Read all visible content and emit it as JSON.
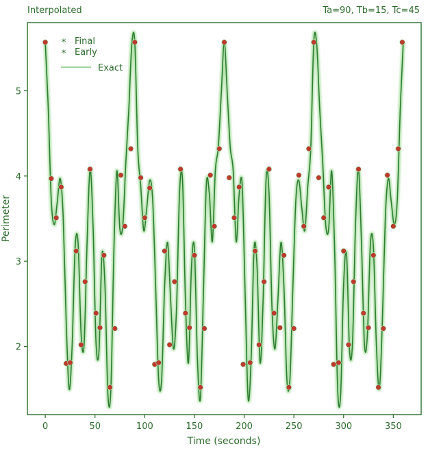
{
  "chart_data": {
    "type": "line",
    "title_left": "Interpolated",
    "title_right": "Ta=90, Tb=15, Tc=45",
    "xlabel": "Time (seconds)",
    "ylabel": "Perimeter",
    "xlim": [
      -18,
      378
    ],
    "ylim": [
      1.2,
      5.8
    ],
    "xticks": [
      0,
      50,
      100,
      150,
      200,
      250,
      300,
      350
    ],
    "yticks": [
      2,
      3,
      4,
      5
    ],
    "grid": false,
    "legend_position": "top-left",
    "legend": [
      {
        "label": "Final",
        "marker": "*",
        "color": "#7aa874"
      },
      {
        "label": "Early",
        "marker": "*",
        "color": "#2e6b2e"
      },
      {
        "label": "Exact",
        "marker": "line",
        "color": "#9fd39a"
      }
    ],
    "colors": {
      "axis": "#2e6b2e",
      "curve": "#2e7d32",
      "glow": "#b7e4b0",
      "marker": "#c0392b"
    },
    "series": [
      {
        "name": "Exact",
        "style": "line",
        "x": [
          0,
          3,
          6,
          9,
          12,
          15,
          18,
          21,
          24,
          27,
          30,
          33,
          36,
          39,
          42,
          45,
          48,
          51,
          54,
          57,
          60,
          63,
          66,
          69,
          72,
          75,
          78,
          81,
          84,
          87,
          90,
          93,
          96,
          99,
          102,
          105,
          108,
          111,
          114,
          117,
          120,
          123,
          126,
          129,
          132,
          135,
          138,
          141,
          144,
          147,
          150,
          153,
          156,
          159,
          162,
          165,
          168,
          171,
          174,
          177,
          180,
          183,
          186,
          189,
          192,
          195,
          198,
          201,
          204,
          207,
          210,
          213,
          216,
          219,
          222,
          225,
          228,
          231,
          234,
          237,
          240,
          243,
          246,
          249,
          252,
          255,
          258,
          261,
          264,
          267,
          270,
          273,
          276,
          279,
          282,
          285,
          288,
          291,
          294,
          297,
          300,
          303,
          306,
          309,
          312,
          315,
          318,
          321,
          324,
          327,
          330,
          333,
          336,
          339,
          342,
          345,
          348,
          351,
          354,
          357,
          360
        ],
        "y": [
          5.57,
          4.79,
          3.72,
          3.43,
          3.69,
          3.97,
          3.52,
          2.3,
          1.5,
          2.01,
          3.16,
          3.21,
          2.15,
          2.02,
          3.21,
          4.08,
          3.43,
          2.05,
          1.95,
          3.08,
          2.72,
          1.43,
          1.51,
          3.13,
          4.06,
          3.38,
          3.43,
          4.16,
          4.78,
          5.54,
          5.57,
          4.33,
          3.88,
          3.36,
          3.62,
          3.95,
          3.72,
          2.7,
          1.61,
          1.61,
          2.7,
          3.22,
          2.56,
          1.97,
          2.45,
          3.8,
          3.95,
          2.52,
          1.81,
          2.93,
          3.15,
          1.85,
          1.39,
          2.61,
          3.9,
          3.79,
          3.23,
          4.06,
          4.34,
          4.97,
          5.57,
          4.97,
          4.34,
          4.06,
          3.23,
          3.79,
          3.9,
          2.61,
          1.39,
          1.85,
          3.15,
          2.93,
          1.81,
          2.52,
          3.95,
          3.8,
          2.45,
          1.97,
          2.56,
          3.22,
          2.7,
          1.61,
          1.61,
          2.7,
          3.72,
          3.95,
          3.62,
          3.36,
          3.88,
          4.33,
          5.57,
          5.54,
          4.78,
          4.16,
          3.43,
          3.38,
          4.06,
          3.13,
          1.51,
          1.43,
          2.72,
          3.08,
          1.95,
          2.05,
          3.43,
          4.08,
          3.21,
          2.02,
          2.15,
          3.21,
          3.16,
          2.01,
          1.5,
          2.3,
          3.52,
          3.97,
          3.69,
          3.43,
          3.72,
          4.79,
          5.57
        ]
      },
      {
        "name": "Final",
        "style": "marker",
        "x": [
          0,
          6,
          11,
          16,
          21,
          25,
          31,
          36,
          40,
          45,
          51,
          55,
          59,
          65,
          70,
          76,
          80,
          86,
          90,
          96,
          100,
          105,
          110,
          114,
          120,
          125,
          130,
          136,
          141,
          145,
          150,
          156,
          160,
          166,
          170,
          175,
          180,
          185,
          190,
          195,
          199,
          206,
          211,
          215,
          220,
          225,
          230,
          236,
          240,
          245,
          250,
          255,
          260,
          265,
          270,
          275,
          280,
          285,
          290,
          295,
          300,
          305,
          310,
          315,
          320,
          325,
          330,
          335,
          340,
          344,
          350,
          355,
          359
        ],
        "y": [
          5.57,
          3.97,
          3.51,
          3.87,
          1.8,
          1.81,
          3.12,
          2.02,
          2.76,
          4.08,
          2.39,
          2.22,
          3.07,
          1.52,
          2.21,
          4.01,
          3.41,
          4.32,
          5.57,
          3.98,
          3.51,
          3.86,
          1.79,
          1.81,
          3.12,
          2.02,
          2.76,
          4.08,
          2.39,
          2.22,
          3.07,
          1.52,
          2.21,
          4.01,
          3.41,
          4.32,
          5.57,
          3.98,
          3.51,
          3.87,
          1.79,
          1.81,
          3.12,
          2.02,
          2.76,
          4.08,
          2.39,
          2.22,
          3.07,
          1.52,
          2.21,
          4.01,
          3.41,
          4.32,
          5.57,
          3.98,
          3.51,
          3.87,
          1.79,
          1.81,
          3.12,
          2.02,
          2.76,
          4.08,
          2.39,
          2.22,
          3.07,
          1.52,
          2.21,
          4.01,
          3.41,
          4.32,
          5.57
        ]
      }
    ]
  }
}
